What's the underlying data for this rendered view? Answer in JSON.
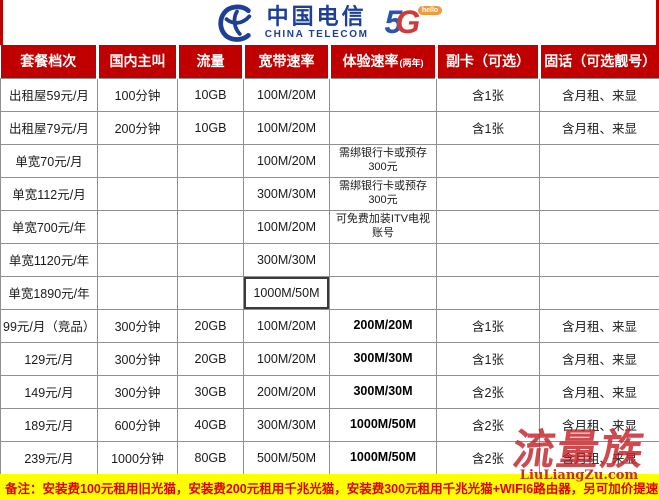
{
  "brand": {
    "cn_name": "中国电信",
    "en_name": "CHINA TELECOM",
    "five": "5",
    "g": "G",
    "hello": "hello",
    "blue": "#1d3f97",
    "g_red": "#cf3a3a",
    "hello_orange": "#f09a3e"
  },
  "table": {
    "header_bg": "#c00000",
    "header_text_color": "#ffffff",
    "columns": [
      {
        "key": "tier",
        "label": "套餐档次",
        "suffix": ""
      },
      {
        "key": "calls",
        "label": "国内主叫",
        "suffix": ""
      },
      {
        "key": "data",
        "label": "流量",
        "suffix": ""
      },
      {
        "key": "broadband",
        "label": "宽带速率",
        "suffix": ""
      },
      {
        "key": "experience",
        "label": "体验速率",
        "suffix": "(两年)"
      },
      {
        "key": "subcard",
        "label": "副卡（可选）",
        "suffix": ""
      },
      {
        "key": "landline",
        "label": "固话（可选靓号）",
        "suffix": ""
      }
    ],
    "rows": [
      {
        "tier": "出租屋59元/月",
        "calls": "100分钟",
        "data": "10GB",
        "broadband": "100M/20M",
        "experience": "",
        "experience_bold": false,
        "broadband_selected": false,
        "subcard": "含1张",
        "landline": "含月租、来显"
      },
      {
        "tier": "出租屋79元/月",
        "calls": "200分钟",
        "data": "10GB",
        "broadband": "100M/20M",
        "experience": "",
        "experience_bold": false,
        "broadband_selected": false,
        "subcard": "含1张",
        "landline": "含月租、来显"
      },
      {
        "tier": "单宽70元/月",
        "calls": "",
        "data": "",
        "broadband": "100M/20M",
        "experience": "需绑银行卡或预存300元",
        "experience_bold": false,
        "broadband_selected": false,
        "subcard": "",
        "landline": ""
      },
      {
        "tier": "单宽112元/月",
        "calls": "",
        "data": "",
        "broadband": "300M/30M",
        "experience": "需绑银行卡或预存300元",
        "experience_bold": false,
        "broadband_selected": false,
        "subcard": "",
        "landline": ""
      },
      {
        "tier": "单宽700元/年",
        "calls": "",
        "data": "",
        "broadband": "100M/20M",
        "experience": "可免费加装ITV电视账号",
        "experience_bold": false,
        "broadband_selected": false,
        "subcard": "",
        "landline": ""
      },
      {
        "tier": "单宽1120元/年",
        "calls": "",
        "data": "",
        "broadband": "300M/30M",
        "experience": "",
        "experience_bold": false,
        "broadband_selected": false,
        "subcard": "",
        "landline": ""
      },
      {
        "tier": "单宽1890元/年",
        "calls": "",
        "data": "",
        "broadband": "1000M/50M",
        "experience": "",
        "experience_bold": false,
        "broadband_selected": true,
        "subcard": "",
        "landline": ""
      },
      {
        "tier": "99元/月（竞品）",
        "calls": "300分钟",
        "data": "20GB",
        "broadband": "100M/20M",
        "experience": "200M/20M",
        "experience_bold": true,
        "broadband_selected": false,
        "subcard": "含1张",
        "landline": "含月租、来显"
      },
      {
        "tier": "129元/月",
        "calls": "300分钟",
        "data": "20GB",
        "broadband": "100M/20M",
        "experience": "300M/30M",
        "experience_bold": true,
        "broadband_selected": false,
        "subcard": "含1张",
        "landline": "含月租、来显"
      },
      {
        "tier": "149元/月",
        "calls": "300分钟",
        "data": "30GB",
        "broadband": "200M/20M",
        "experience": "300M/30M",
        "experience_bold": true,
        "broadband_selected": false,
        "subcard": "含2张",
        "landline": "含月租、来显"
      },
      {
        "tier": "189元/月",
        "calls": "600分钟",
        "data": "40GB",
        "broadband": "300M/30M",
        "experience": "1000M/50M",
        "experience_bold": true,
        "broadband_selected": false,
        "subcard": "含2张",
        "landline": "含月租、来显"
      },
      {
        "tier": "239元/月",
        "calls": "1000分钟",
        "data": "80GB",
        "broadband": "500M/50M",
        "experience": "1000M/50M",
        "experience_bold": true,
        "broadband_selected": false,
        "subcard": "含2张",
        "landline": "含月租、来显"
      }
    ]
  },
  "footnote": {
    "text": "备注：安装费100元租用旧光猫，安装费200元租用千兆光猫，安装费300元租用千兆光猫+WIFI6路由器，另可加价提速",
    "bg": "#ffff00",
    "color": "#e00000"
  },
  "watermark": {
    "title": "流量族",
    "url": "LiuLiangZu.com",
    "color": "#c42228"
  }
}
